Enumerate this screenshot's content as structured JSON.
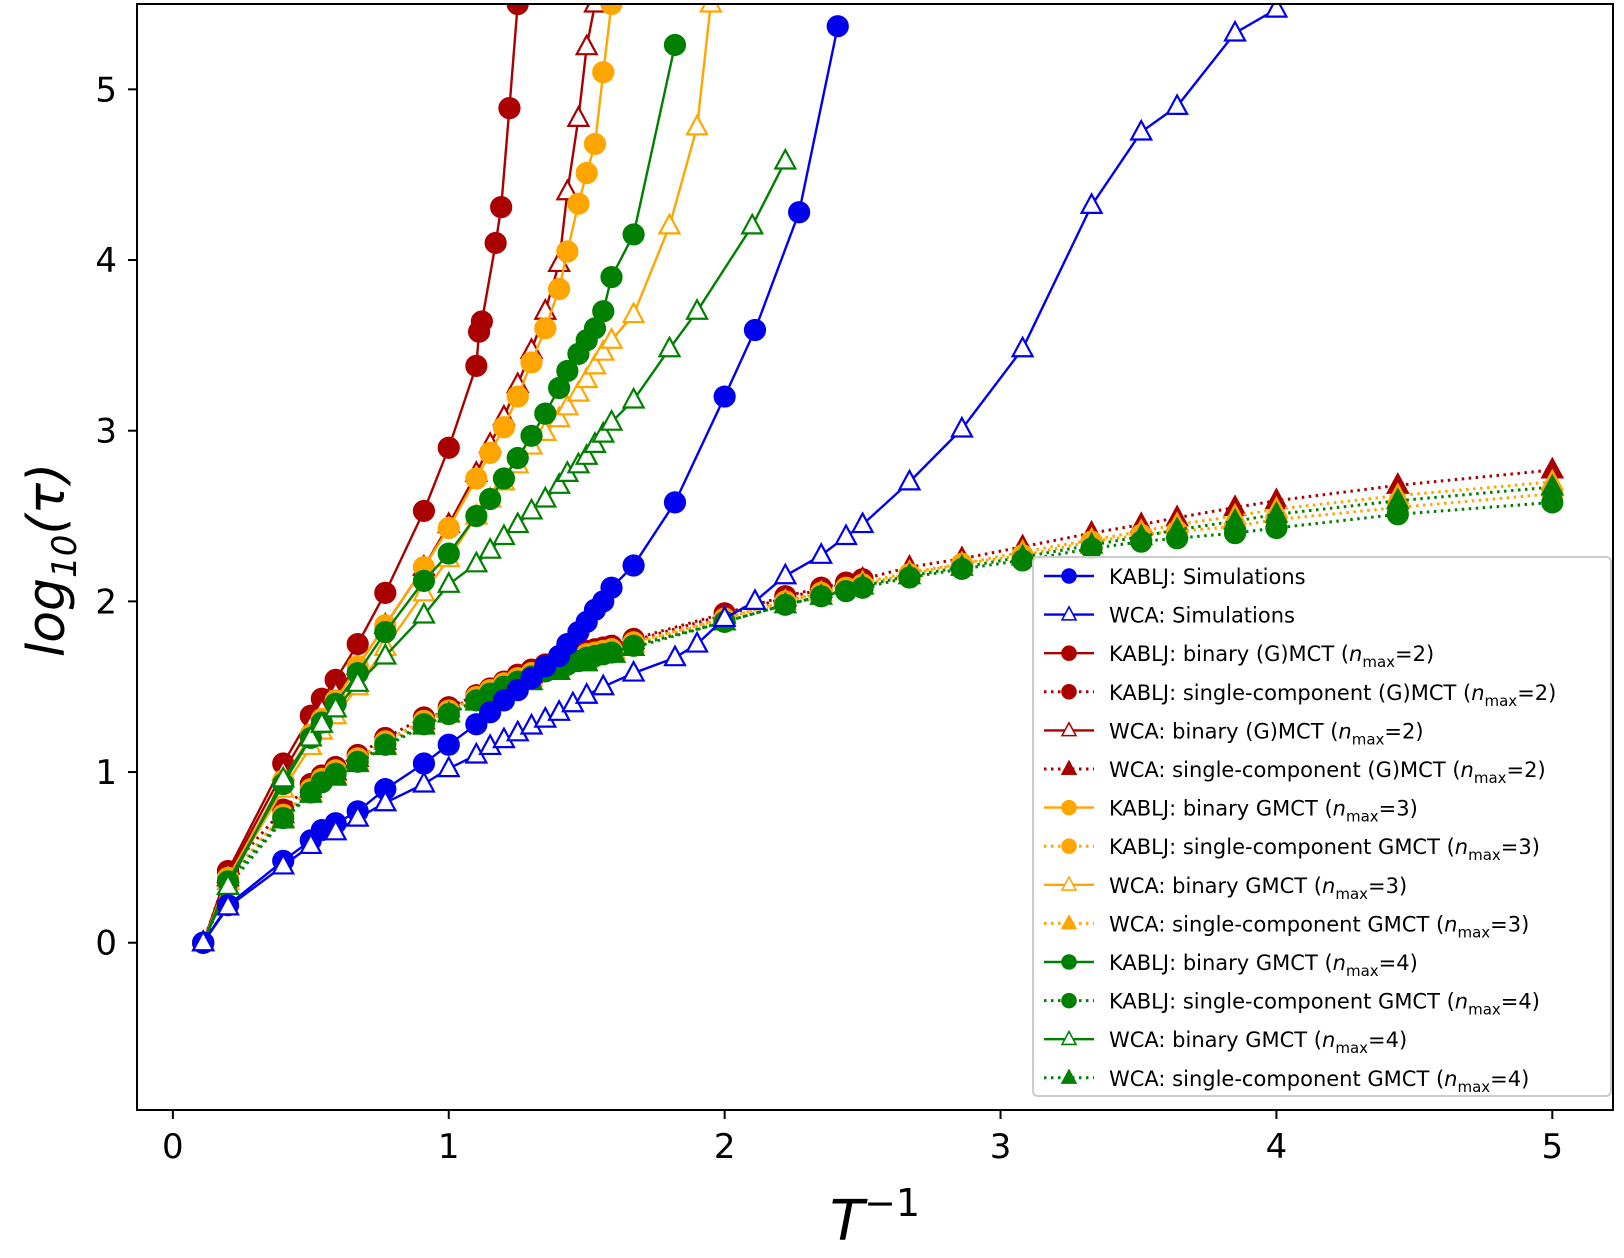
{
  "chart_data": {
    "type": "line",
    "title": "",
    "xlabel_main": "T",
    "xlabel_sup": "−1",
    "ylabel_main": "log",
    "ylabel_sub": "10",
    "ylabel_arg": "(τ)",
    "xlim": [
      -0.13,
      5.22
    ],
    "ylim": [
      -0.98,
      5.5
    ],
    "xticks": [
      0,
      1,
      2,
      3,
      4,
      5
    ],
    "xtick_labels": [
      "0",
      "1",
      "2",
      "3",
      "4",
      "5"
    ],
    "yticks": [
      0,
      1,
      2,
      3,
      4,
      5
    ],
    "ytick_labels": [
      "0",
      "1",
      "2",
      "3",
      "4",
      "5"
    ],
    "grid": false,
    "legend_position": "lower-right",
    "series": [
      {
        "name": "KABLJ: Simulations",
        "color": "#0000ee",
        "marker": "circle",
        "fill": true,
        "dash": "solid",
        "x": [
          0.11,
          0.2,
          0.4,
          0.5,
          0.54,
          0.59,
          0.67,
          0.77,
          0.91,
          1.0,
          1.1,
          1.15,
          1.2,
          1.25,
          1.3,
          1.35,
          1.4,
          1.43,
          1.47,
          1.5,
          1.53,
          1.56,
          1.59,
          1.67,
          1.82,
          2.0,
          2.11,
          2.27,
          2.41
        ],
        "y": [
          0,
          0.22,
          0.48,
          0.6,
          0.66,
          0.7,
          0.77,
          0.9,
          1.05,
          1.16,
          1.28,
          1.35,
          1.42,
          1.48,
          1.55,
          1.62,
          1.68,
          1.75,
          1.82,
          1.88,
          1.95,
          2.0,
          2.08,
          2.21,
          2.58,
          3.2,
          3.59,
          4.28,
          5.37
        ]
      },
      {
        "name": "WCA: Simulations",
        "color": "#0000ee",
        "marker": "triangle",
        "fill": false,
        "dash": "solid",
        "x": [
          0.11,
          0.2,
          0.4,
          0.5,
          0.59,
          0.67,
          0.77,
          0.91,
          1.0,
          1.1,
          1.15,
          1.2,
          1.25,
          1.3,
          1.35,
          1.4,
          1.45,
          1.5,
          1.56,
          1.67,
          1.82,
          1.9,
          2.0,
          2.11,
          2.22,
          2.35,
          2.44,
          2.5,
          2.67,
          2.86,
          3.08,
          3.33,
          3.51,
          3.64,
          3.85,
          4.0
        ],
        "y": [
          0,
          0.21,
          0.45,
          0.57,
          0.65,
          0.73,
          0.82,
          0.93,
          1.02,
          1.1,
          1.15,
          1.19,
          1.23,
          1.27,
          1.31,
          1.35,
          1.4,
          1.45,
          1.5,
          1.58,
          1.67,
          1.75,
          1.9,
          2.0,
          2.15,
          2.27,
          2.38,
          2.45,
          2.7,
          3.01,
          3.48,
          4.32,
          4.75,
          4.9,
          5.33,
          5.47
        ]
      },
      {
        "name": "KABLJ: binary (G)MCT (n_max=2)",
        "color": "#aa0000",
        "marker": "circle",
        "fill": true,
        "dash": "solid",
        "x": [
          0.11,
          0.2,
          0.4,
          0.5,
          0.54,
          0.59,
          0.67,
          0.77,
          0.91,
          1.0,
          1.1,
          1.11,
          1.12,
          1.17,
          1.19,
          1.22,
          1.25
        ],
        "y": [
          0,
          0.42,
          1.05,
          1.33,
          1.43,
          1.54,
          1.75,
          2.05,
          2.53,
          2.9,
          3.38,
          3.58,
          3.64,
          4.1,
          4.31,
          4.89,
          5.5
        ]
      },
      {
        "name": "KABLJ: single-component (G)MCT (n_max=2)",
        "color": "#aa0000",
        "marker": "circle",
        "fill": true,
        "dash": "dotted",
        "x": [
          0.11,
          0.2,
          0.4,
          0.5,
          0.54,
          0.59,
          0.67,
          0.77,
          0.91,
          1.0,
          1.1,
          1.15,
          1.2,
          1.25,
          1.3,
          1.35,
          1.4,
          1.43,
          1.47,
          1.5,
          1.53,
          1.56,
          1.59,
          1.67,
          2.0,
          2.22,
          2.35,
          2.44,
          2.5
        ],
        "y": [
          0,
          0.42,
          0.78,
          0.93,
          0.98,
          1.03,
          1.1,
          1.2,
          1.32,
          1.38,
          1.45,
          1.49,
          1.53,
          1.57,
          1.6,
          1.63,
          1.66,
          1.67,
          1.69,
          1.71,
          1.72,
          1.73,
          1.74,
          1.78,
          1.93,
          2.03,
          2.08,
          2.11,
          2.13
        ]
      },
      {
        "name": "WCA: binary (G)MCT (n_max=2)",
        "color": "#aa0000",
        "marker": "triangle",
        "fill": false,
        "dash": "solid",
        "x": [
          0.11,
          0.2,
          0.4,
          0.5,
          0.54,
          0.59,
          0.67,
          0.77,
          0.91,
          1.0,
          1.1,
          1.15,
          1.2,
          1.25,
          1.3,
          1.35,
          1.4,
          1.43,
          1.47,
          1.5,
          1.53
        ],
        "y": [
          0,
          0.4,
          1.0,
          1.27,
          1.36,
          1.46,
          1.62,
          1.86,
          2.2,
          2.45,
          2.75,
          2.92,
          3.08,
          3.27,
          3.47,
          3.7,
          3.98,
          4.4,
          4.83,
          5.25,
          5.5
        ]
      },
      {
        "name": "WCA: single-component (G)MCT (n_max=2)",
        "color": "#aa0000",
        "marker": "triangle",
        "fill": true,
        "dash": "dotted",
        "x": [
          0.11,
          0.2,
          0.4,
          0.5,
          0.59,
          0.67,
          0.77,
          0.91,
          1.0,
          1.1,
          1.2,
          1.3,
          1.4,
          1.5,
          1.6,
          1.67,
          2.0,
          2.22,
          2.35,
          2.5,
          2.67,
          2.86,
          3.08,
          3.33,
          3.51,
          3.64,
          3.85,
          4.0,
          4.44,
          5.0
        ],
        "y": [
          0,
          0.38,
          0.75,
          0.9,
          1.0,
          1.08,
          1.18,
          1.3,
          1.37,
          1.44,
          1.5,
          1.57,
          1.63,
          1.68,
          1.73,
          1.77,
          1.92,
          2.02,
          2.07,
          2.13,
          2.2,
          2.25,
          2.32,
          2.4,
          2.45,
          2.49,
          2.55,
          2.59,
          2.68,
          2.77
        ]
      },
      {
        "name": "KABLJ: binary GMCT (n_max=3)",
        "color": "#ffa500",
        "marker": "circle",
        "fill": true,
        "dash": "solid",
        "x": [
          0.11,
          0.2,
          0.4,
          0.5,
          0.54,
          0.59,
          0.67,
          0.77,
          0.91,
          1.0,
          1.1,
          1.15,
          1.2,
          1.25,
          1.3,
          1.35,
          1.4,
          1.43,
          1.47,
          1.5,
          1.53,
          1.56,
          1.59
        ],
        "y": [
          0,
          0.38,
          0.95,
          1.22,
          1.31,
          1.42,
          1.62,
          1.86,
          2.2,
          2.43,
          2.72,
          2.87,
          3.02,
          3.2,
          3.4,
          3.6,
          3.83,
          4.05,
          4.33,
          4.51,
          4.68,
          5.1,
          5.5
        ]
      },
      {
        "name": "KABLJ: single-component GMCT (n_max=3)",
        "color": "#ffa500",
        "marker": "circle",
        "fill": true,
        "dash": "dotted",
        "x": [
          0.11,
          0.2,
          0.4,
          0.5,
          0.54,
          0.59,
          0.67,
          0.77,
          0.91,
          1.0,
          1.1,
          1.15,
          1.2,
          1.25,
          1.3,
          1.35,
          1.4,
          1.43,
          1.47,
          1.5,
          1.53,
          1.56,
          1.59,
          1.67,
          2.0,
          2.22,
          2.35,
          2.44,
          2.5,
          2.67,
          2.86,
          3.08,
          3.33,
          3.51,
          3.64,
          3.85,
          4.0,
          4.44,
          5.0
        ],
        "y": [
          0,
          0.38,
          0.75,
          0.9,
          0.96,
          1.01,
          1.08,
          1.18,
          1.3,
          1.36,
          1.44,
          1.48,
          1.52,
          1.55,
          1.58,
          1.61,
          1.64,
          1.65,
          1.67,
          1.69,
          1.7,
          1.71,
          1.72,
          1.76,
          1.9,
          2.0,
          2.05,
          2.08,
          2.1,
          2.16,
          2.22,
          2.27,
          2.35,
          2.39,
          2.41,
          2.44,
          2.48,
          2.55,
          2.63
        ]
      },
      {
        "name": "WCA: binary GMCT (n_max=3)",
        "color": "#ffa500",
        "marker": "triangle",
        "fill": false,
        "dash": "solid",
        "x": [
          0.11,
          0.2,
          0.4,
          0.5,
          0.54,
          0.59,
          0.67,
          0.77,
          0.91,
          1.0,
          1.1,
          1.15,
          1.2,
          1.25,
          1.3,
          1.35,
          1.4,
          1.43,
          1.47,
          1.5,
          1.53,
          1.56,
          1.59,
          1.67,
          1.8,
          1.9,
          1.95
        ],
        "y": [
          0,
          0.36,
          0.9,
          1.15,
          1.24,
          1.33,
          1.5,
          1.73,
          2.05,
          2.25,
          2.5,
          2.6,
          2.7,
          2.8,
          2.91,
          2.99,
          3.07,
          3.14,
          3.22,
          3.3,
          3.38,
          3.46,
          3.53,
          3.68,
          4.2,
          4.78,
          5.5
        ]
      },
      {
        "name": "WCA: single-component GMCT (n_max=3)",
        "color": "#ffa500",
        "marker": "triangle",
        "fill": true,
        "dash": "dotted",
        "x": [
          0.11,
          0.2,
          0.4,
          0.5,
          0.59,
          0.67,
          0.77,
          0.91,
          1.0,
          1.1,
          1.2,
          1.3,
          1.4,
          1.5,
          1.6,
          1.67,
          2.0,
          2.22,
          2.35,
          2.5,
          2.67,
          2.86,
          3.08,
          3.33,
          3.51,
          3.64,
          3.85,
          4.0,
          4.44,
          5.0
        ],
        "y": [
          0,
          0.36,
          0.73,
          0.88,
          0.98,
          1.06,
          1.16,
          1.28,
          1.35,
          1.42,
          1.48,
          1.55,
          1.61,
          1.66,
          1.71,
          1.75,
          1.9,
          2.0,
          2.05,
          2.11,
          2.17,
          2.22,
          2.29,
          2.36,
          2.41,
          2.45,
          2.5,
          2.54,
          2.62,
          2.7
        ]
      },
      {
        "name": "KABLJ: binary GMCT (n_max=4)",
        "color": "#008000",
        "marker": "circle",
        "fill": true,
        "dash": "solid",
        "x": [
          0.11,
          0.2,
          0.4,
          0.5,
          0.54,
          0.59,
          0.67,
          0.77,
          0.91,
          1.0,
          1.1,
          1.15,
          1.2,
          1.25,
          1.3,
          1.35,
          1.4,
          1.43,
          1.47,
          1.5,
          1.53,
          1.56,
          1.59,
          1.67,
          1.82
        ],
        "y": [
          0,
          0.36,
          0.93,
          1.2,
          1.29,
          1.4,
          1.58,
          1.82,
          2.12,
          2.28,
          2.5,
          2.6,
          2.72,
          2.84,
          2.97,
          3.1,
          3.25,
          3.35,
          3.45,
          3.53,
          3.6,
          3.7,
          3.9,
          4.15,
          5.26
        ]
      },
      {
        "name": "KABLJ: single-component GMCT (n_max=4)",
        "color": "#008000",
        "marker": "circle",
        "fill": true,
        "dash": "dotted",
        "x": [
          0.11,
          0.2,
          0.4,
          0.5,
          0.54,
          0.59,
          0.67,
          0.77,
          0.91,
          1.0,
          1.1,
          1.15,
          1.2,
          1.25,
          1.3,
          1.35,
          1.4,
          1.43,
          1.47,
          1.5,
          1.53,
          1.56,
          1.59,
          1.67,
          2.0,
          2.22,
          2.35,
          2.44,
          2.5,
          2.67,
          2.86,
          3.08,
          3.33,
          3.51,
          3.64,
          3.85,
          4.0,
          4.44,
          5.0
        ],
        "y": [
          0,
          0.36,
          0.73,
          0.88,
          0.94,
          0.99,
          1.06,
          1.16,
          1.28,
          1.34,
          1.42,
          1.46,
          1.5,
          1.53,
          1.56,
          1.59,
          1.62,
          1.63,
          1.65,
          1.67,
          1.68,
          1.69,
          1.7,
          1.74,
          1.88,
          1.98,
          2.03,
          2.06,
          2.08,
          2.14,
          2.19,
          2.24,
          2.31,
          2.35,
          2.37,
          2.4,
          2.43,
          2.51,
          2.58
        ]
      },
      {
        "name": "WCA: binary GMCT (n_max=4)",
        "color": "#008000",
        "marker": "triangle",
        "fill": false,
        "dash": "solid",
        "x": [
          0.11,
          0.2,
          0.4,
          0.5,
          0.54,
          0.59,
          0.67,
          0.77,
          0.91,
          1.0,
          1.1,
          1.15,
          1.2,
          1.25,
          1.3,
          1.35,
          1.4,
          1.43,
          1.47,
          1.5,
          1.53,
          1.56,
          1.59,
          1.67,
          1.8,
          1.9,
          2.1,
          2.22
        ],
        "y": [
          0,
          0.33,
          0.96,
          1.2,
          1.28,
          1.37,
          1.52,
          1.68,
          1.92,
          2.1,
          2.22,
          2.3,
          2.38,
          2.45,
          2.53,
          2.6,
          2.68,
          2.75,
          2.8,
          2.85,
          2.92,
          2.98,
          3.05,
          3.18,
          3.48,
          3.7,
          4.2,
          4.58
        ]
      },
      {
        "name": "WCA: single-component GMCT (n_max=4)",
        "color": "#008000",
        "marker": "triangle",
        "fill": true,
        "dash": "dotted",
        "x": [
          0.11,
          0.2,
          0.4,
          0.5,
          0.59,
          0.67,
          0.77,
          0.91,
          1.0,
          1.1,
          1.2,
          1.3,
          1.4,
          1.5,
          1.6,
          1.67,
          2.0,
          2.22,
          2.35,
          2.5,
          2.67,
          2.86,
          3.08,
          3.33,
          3.51,
          3.64,
          3.85,
          4.0,
          4.44,
          5.0
        ],
        "y": [
          0,
          0.33,
          0.72,
          0.87,
          0.97,
          1.05,
          1.15,
          1.27,
          1.34,
          1.41,
          1.47,
          1.53,
          1.59,
          1.64,
          1.69,
          1.73,
          1.88,
          1.98,
          2.03,
          2.09,
          2.15,
          2.2,
          2.26,
          2.33,
          2.38,
          2.42,
          2.47,
          2.51,
          2.59,
          2.67
        ]
      }
    ],
    "legend": [
      {
        "prefix": "KABLJ: Simulations",
        "n": ""
      },
      {
        "prefix": "WCA: Simulations",
        "n": ""
      },
      {
        "prefix": "KABLJ: binary (G)MCT (",
        "n": "2"
      },
      {
        "prefix": "KABLJ: single-component (G)MCT (",
        "n": "2"
      },
      {
        "prefix": "WCA: binary (G)MCT (",
        "n": "2"
      },
      {
        "prefix": "WCA: single-component (G)MCT (",
        "n": "2"
      },
      {
        "prefix": "KABLJ: binary GMCT (",
        "n": "3"
      },
      {
        "prefix": "KABLJ: single-component GMCT (",
        "n": "3"
      },
      {
        "prefix": "WCA: binary GMCT (",
        "n": "3"
      },
      {
        "prefix": "WCA: single-component GMCT (",
        "n": "3"
      },
      {
        "prefix": "KABLJ: binary GMCT (",
        "n": "4"
      },
      {
        "prefix": "KABLJ: single-component GMCT (",
        "n": "4"
      },
      {
        "prefix": "WCA: binary GMCT (",
        "n": "4"
      },
      {
        "prefix": "WCA: single-component GMCT (",
        "n": "4"
      }
    ],
    "legend_n_symbol": "n",
    "legend_n_sub": "max"
  }
}
